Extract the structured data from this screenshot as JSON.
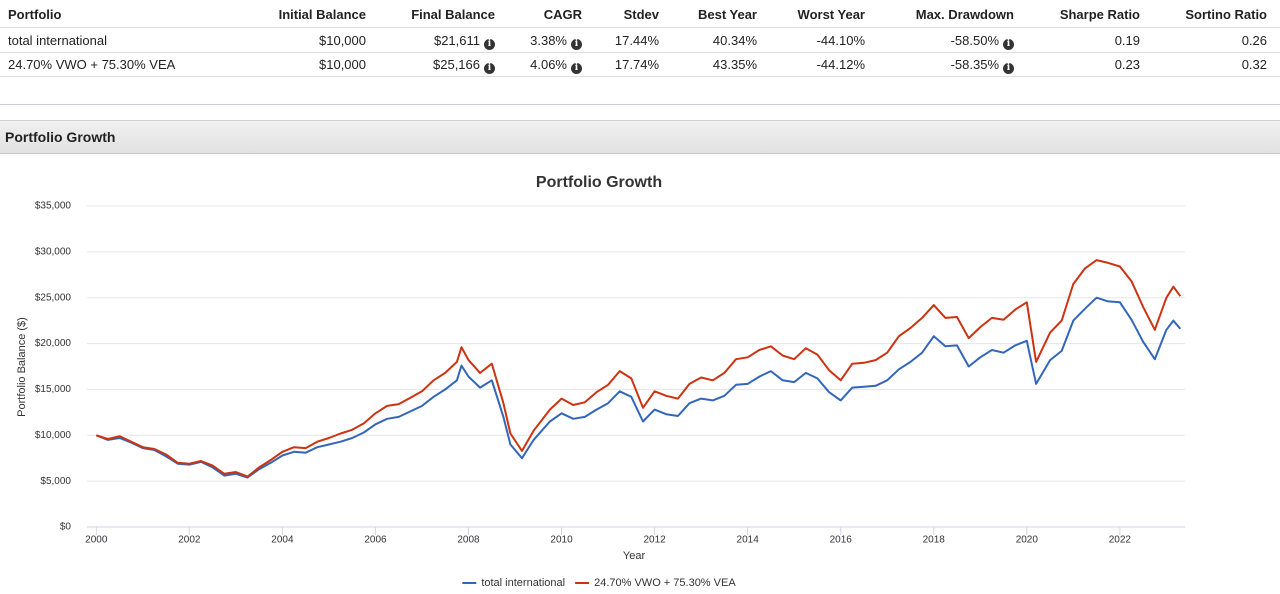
{
  "table": {
    "header": [
      "Portfolio",
      "Initial Balance",
      "Final Balance",
      "CAGR",
      "Stdev",
      "Best Year",
      "Worst Year",
      "Max. Drawdown",
      "Sharpe Ratio",
      "Sortino Ratio"
    ],
    "rows": [
      [
        "total international",
        "$10,000",
        "$21,611",
        "3.38%",
        "17.44%",
        "40.34%",
        "-44.10%",
        "-58.50%",
        "0.19",
        "0.26"
      ],
      [
        "24.70% VWO + 75.30% VEA",
        "$10,000",
        "$25,166",
        "4.06%",
        "17.74%",
        "43.35%",
        "-44.12%",
        "-58.35%",
        "0.23",
        "0.32"
      ]
    ]
  },
  "section_title": "Portfolio Growth",
  "chart_data": {
    "type": "line",
    "title": "Portfolio Growth",
    "x_label": "Year",
    "y_label": "Portfolio Balance ($)",
    "x": [
      2000,
      2000.25,
      2000.5,
      2000.75,
      2001,
      2001.25,
      2001.5,
      2001.75,
      2002,
      2002.25,
      2002.5,
      2002.75,
      2003,
      2003.25,
      2003.5,
      2003.75,
      2004,
      2004.25,
      2004.5,
      2004.75,
      2005,
      2005.25,
      2005.5,
      2005.75,
      2006,
      2006.25,
      2006.5,
      2006.75,
      2007,
      2007.25,
      2007.5,
      2007.75,
      2007.85,
      2008,
      2008.25,
      2008.5,
      2008.75,
      2008.9,
      2009.15,
      2009.4,
      2009.75,
      2010,
      2010.25,
      2010.5,
      2010.75,
      2011,
      2011.25,
      2011.5,
      2011.75,
      2012,
      2012.25,
      2012.5,
      2012.75,
      2013,
      2013.25,
      2013.5,
      2013.75,
      2014,
      2014.25,
      2014.5,
      2014.75,
      2015,
      2015.25,
      2015.5,
      2015.75,
      2016,
      2016.25,
      2016.5,
      2016.75,
      2017,
      2017.25,
      2017.5,
      2017.75,
      2018,
      2018.25,
      2018.5,
      2018.75,
      2019,
      2019.25,
      2019.5,
      2019.75,
      2020,
      2020.2,
      2020.5,
      2020.75,
      2021,
      2021.25,
      2021.5,
      2021.75,
      2022,
      2022.25,
      2022.5,
      2022.75,
      2023,
      2023.15,
      2023.3
    ],
    "series": [
      {
        "name": "total international",
        "color": "#3366bb",
        "values": [
          10000,
          9500,
          9700,
          9200,
          8600,
          8400,
          7700,
          6900,
          6800,
          7100,
          6500,
          5600,
          5800,
          5400,
          6300,
          7000,
          7800,
          8200,
          8100,
          8700,
          9000,
          9300,
          9700,
          10300,
          11200,
          11800,
          12000,
          12600,
          13200,
          14200,
          15000,
          16000,
          17600,
          16400,
          15200,
          16000,
          12000,
          9000,
          7500,
          9500,
          11500,
          12400,
          11800,
          12000,
          12800,
          13500,
          14800,
          14200,
          11500,
          12800,
          12300,
          12100,
          13500,
          14000,
          13800,
          14300,
          15500,
          15600,
          16400,
          17000,
          16000,
          15800,
          16800,
          16200,
          14700,
          13800,
          15200,
          15300,
          15400,
          16000,
          17200,
          18000,
          19000,
          20800,
          19700,
          19800,
          17500,
          18500,
          19300,
          19000,
          19800,
          20300,
          15600,
          18200,
          19200,
          22500,
          23800,
          25000,
          24600,
          24500,
          22600,
          20200,
          18300,
          21500,
          22500,
          21611
        ]
      },
      {
        "name": "24.70% VWO + 75.30% VEA",
        "color": "#cc3311",
        "values": [
          10000,
          9600,
          9900,
          9300,
          8700,
          8500,
          7900,
          7000,
          6900,
          7200,
          6700,
          5800,
          6000,
          5500,
          6500,
          7300,
          8200,
          8700,
          8600,
          9300,
          9700,
          10200,
          10600,
          11300,
          12400,
          13200,
          13400,
          14100,
          14800,
          16000,
          16800,
          18000,
          19600,
          18200,
          16800,
          17800,
          13500,
          10200,
          8300,
          10500,
          12800,
          14000,
          13300,
          13600,
          14700,
          15500,
          17000,
          16200,
          13000,
          14800,
          14300,
          14000,
          15600,
          16300,
          16000,
          16800,
          18300,
          18500,
          19300,
          19700,
          18700,
          18300,
          19500,
          18800,
          17100,
          16000,
          17800,
          17900,
          18200,
          19000,
          20800,
          21700,
          22800,
          24200,
          22800,
          22900,
          20600,
          21800,
          22800,
          22600,
          23700,
          24500,
          18000,
          21200,
          22500,
          26500,
          28200,
          29100,
          28800,
          28400,
          26800,
          24000,
          21500,
          25000,
          26200,
          25166
        ]
      }
    ],
    "xlim": [
      1999.8,
      2023.4
    ],
    "xticks": [
      2000,
      2002,
      2004,
      2006,
      2008,
      2010,
      2012,
      2014,
      2016,
      2018,
      2020,
      2022
    ],
    "ylim": [
      0,
      35000
    ],
    "yticks": [
      {
        "value": 0,
        "label": "$0"
      },
      {
        "value": 5000,
        "label": "$5,000"
      },
      {
        "value": 10000,
        "label": "$10,000"
      },
      {
        "value": 15000,
        "label": "$15,000"
      },
      {
        "value": 20000,
        "label": "$20,000"
      },
      {
        "value": 25000,
        "label": "$25,000"
      },
      {
        "value": 30000,
        "label": "$30,000"
      },
      {
        "value": 35000,
        "label": "$35,000"
      }
    ],
    "grid": true
  }
}
